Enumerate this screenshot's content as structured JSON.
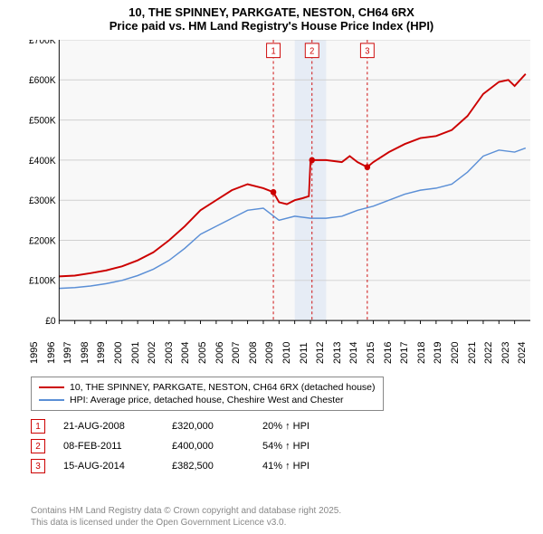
{
  "chart": {
    "title_line1": "10, THE SPINNEY, PARKGATE, NESTON, CH64 6RX",
    "title_line2": "Price paid vs. HM Land Registry's House Price Index (HPI)",
    "background_color": "#ffffff",
    "plot_bg": "#f8f8f8",
    "shaded_band_color": "#e6ecf5",
    "shaded_band_x": [
      2010.0,
      2012.0
    ],
    "grid_color": "#d0d0d0",
    "axis_color": "#000000",
    "title_fontsize": 13,
    "tick_fontsize": 11,
    "legend_fontsize": 10.5,
    "x_range": [
      1995,
      2025
    ],
    "y_range": [
      0,
      700000
    ],
    "y_ticks": [
      0,
      100000,
      200000,
      300000,
      400000,
      500000,
      600000,
      700000
    ],
    "y_tick_labels": [
      "£0",
      "£100K",
      "£200K",
      "£300K",
      "£400K",
      "£500K",
      "£600K",
      "£700K"
    ],
    "x_ticks": [
      1995,
      1996,
      1997,
      1998,
      1999,
      2000,
      2001,
      2002,
      2003,
      2004,
      2005,
      2006,
      2007,
      2008,
      2009,
      2010,
      2011,
      2012,
      2013,
      2014,
      2015,
      2016,
      2017,
      2018,
      2019,
      2020,
      2021,
      2022,
      2023,
      2024
    ],
    "series": {
      "price_paid": {
        "label": "10, THE SPINNEY, PARKGATE, NESTON, CH64 6RX (detached house)",
        "color": "#cc0000",
        "line_width": 2,
        "data": [
          [
            1995,
            110000
          ],
          [
            1996,
            112000
          ],
          [
            1997,
            118000
          ],
          [
            1998,
            125000
          ],
          [
            1999,
            135000
          ],
          [
            2000,
            150000
          ],
          [
            2001,
            170000
          ],
          [
            2002,
            200000
          ],
          [
            2003,
            235000
          ],
          [
            2004,
            275000
          ],
          [
            2005,
            300000
          ],
          [
            2006,
            325000
          ],
          [
            2007,
            340000
          ],
          [
            2008,
            330000
          ],
          [
            2008.64,
            320000
          ],
          [
            2009,
            295000
          ],
          [
            2009.5,
            290000
          ],
          [
            2010,
            300000
          ],
          [
            2010.5,
            305000
          ],
          [
            2010.9,
            310000
          ],
          [
            2011.0,
            395000
          ],
          [
            2011.1,
            400000
          ],
          [
            2012,
            400000
          ],
          [
            2013,
            395000
          ],
          [
            2013.5,
            410000
          ],
          [
            2014,
            395000
          ],
          [
            2014.62,
            382500
          ],
          [
            2015,
            395000
          ],
          [
            2016,
            420000
          ],
          [
            2017,
            440000
          ],
          [
            2018,
            455000
          ],
          [
            2019,
            460000
          ],
          [
            2020,
            475000
          ],
          [
            2021,
            510000
          ],
          [
            2022,
            565000
          ],
          [
            2023,
            595000
          ],
          [
            2023.6,
            600000
          ],
          [
            2024,
            585000
          ],
          [
            2024.7,
            615000
          ]
        ]
      },
      "hpi": {
        "label": "HPI: Average price, detached house, Cheshire West and Chester",
        "color": "#5b8fd6",
        "line_width": 1.5,
        "data": [
          [
            1995,
            80000
          ],
          [
            1996,
            82000
          ],
          [
            1997,
            86000
          ],
          [
            1998,
            92000
          ],
          [
            1999,
            100000
          ],
          [
            2000,
            112000
          ],
          [
            2001,
            128000
          ],
          [
            2002,
            150000
          ],
          [
            2003,
            180000
          ],
          [
            2004,
            215000
          ],
          [
            2005,
            235000
          ],
          [
            2006,
            255000
          ],
          [
            2007,
            275000
          ],
          [
            2008,
            280000
          ],
          [
            2009,
            250000
          ],
          [
            2010,
            260000
          ],
          [
            2011,
            255000
          ],
          [
            2012,
            255000
          ],
          [
            2013,
            260000
          ],
          [
            2014,
            275000
          ],
          [
            2015,
            285000
          ],
          [
            2016,
            300000
          ],
          [
            2017,
            315000
          ],
          [
            2018,
            325000
          ],
          [
            2019,
            330000
          ],
          [
            2020,
            340000
          ],
          [
            2021,
            370000
          ],
          [
            2022,
            410000
          ],
          [
            2023,
            425000
          ],
          [
            2024,
            420000
          ],
          [
            2024.7,
            430000
          ]
        ]
      }
    },
    "sale_markers": [
      {
        "n": "1",
        "x": 2008.64,
        "y": 320000,
        "date": "21-AUG-2008",
        "price": "£320,000",
        "delta": "20% ↑ HPI",
        "color": "#cc0000"
      },
      {
        "n": "2",
        "x": 2011.1,
        "y": 400000,
        "date": "08-FEB-2011",
        "price": "£400,000",
        "delta": "54% ↑ HPI",
        "color": "#cc0000"
      },
      {
        "n": "3",
        "x": 2014.62,
        "y": 382500,
        "date": "15-AUG-2014",
        "price": "£382,500",
        "delta": "41% ↑ HPI",
        "color": "#cc0000"
      }
    ]
  },
  "footer": {
    "line1": "Contains HM Land Registry data © Crown copyright and database right 2025.",
    "line2": "This data is licensed under the Open Government Licence v3.0."
  }
}
